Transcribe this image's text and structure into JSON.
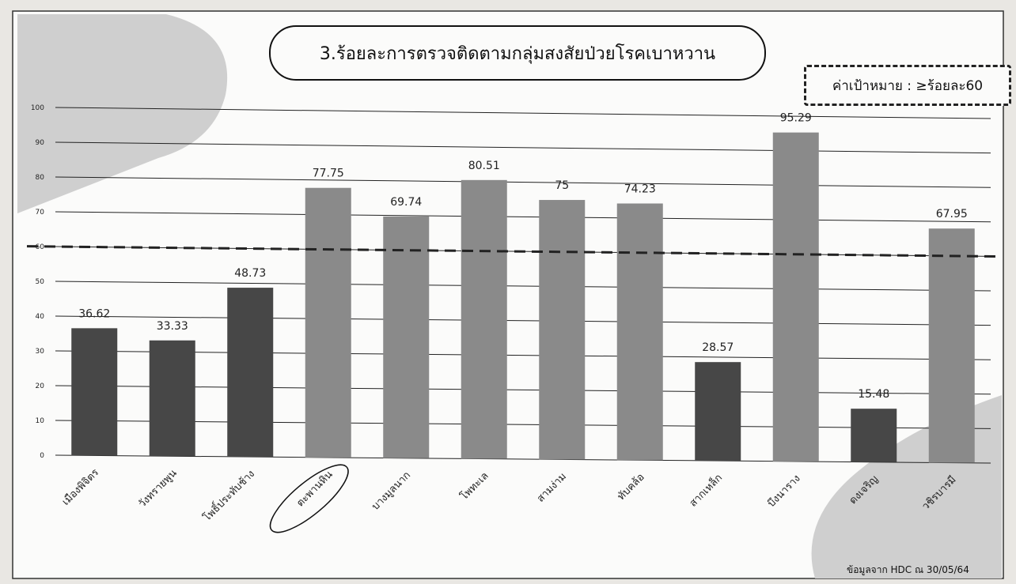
{
  "chart_data": {
    "type": "bar",
    "title": "3.ร้อยละการตรวจติดตามกลุ่มสงสัยป่วยโรคเบาหวาน",
    "target_label": "ค่าเป้าหมาย : ≥ร้อยละ60",
    "target_value": 60,
    "source_note": "ข้อมูลจาก HDC ณ 30/05/64",
    "categories": [
      "เมืองพิจิตร",
      "วังทรายพูน",
      "โพธิ์ประทับช้าง",
      "ตะพานหิน",
      "บางมูลนาก",
      "โพทะเล",
      "สามง่าม",
      "ทับคล้อ",
      "สากเหล็ก",
      "บึงนาราง",
      "ดงเจริญ",
      "วชิรบารมี"
    ],
    "values": [
      36.62,
      33.33,
      48.73,
      77.75,
      69.74,
      80.51,
      75,
      74.23,
      28.57,
      95.29,
      15.48,
      67.95
    ],
    "value_labels": [
      "36.62",
      "33.33",
      "48.73",
      "77.75",
      "69.74",
      "80.51",
      "75",
      "74.23",
      "28.57",
      "95.29",
      "15.48",
      "67.95"
    ],
    "highlighted_category": "ตะพานหิน",
    "ylim": [
      0,
      100
    ],
    "yticks": [
      0,
      10,
      20,
      30,
      40,
      50,
      60,
      70,
      80,
      90,
      100
    ],
    "grid": true,
    "colors": {
      "below_target": "#474747",
      "meets_target": "#8a8a8a",
      "target_line": "#222222",
      "grid": "#222222"
    }
  }
}
